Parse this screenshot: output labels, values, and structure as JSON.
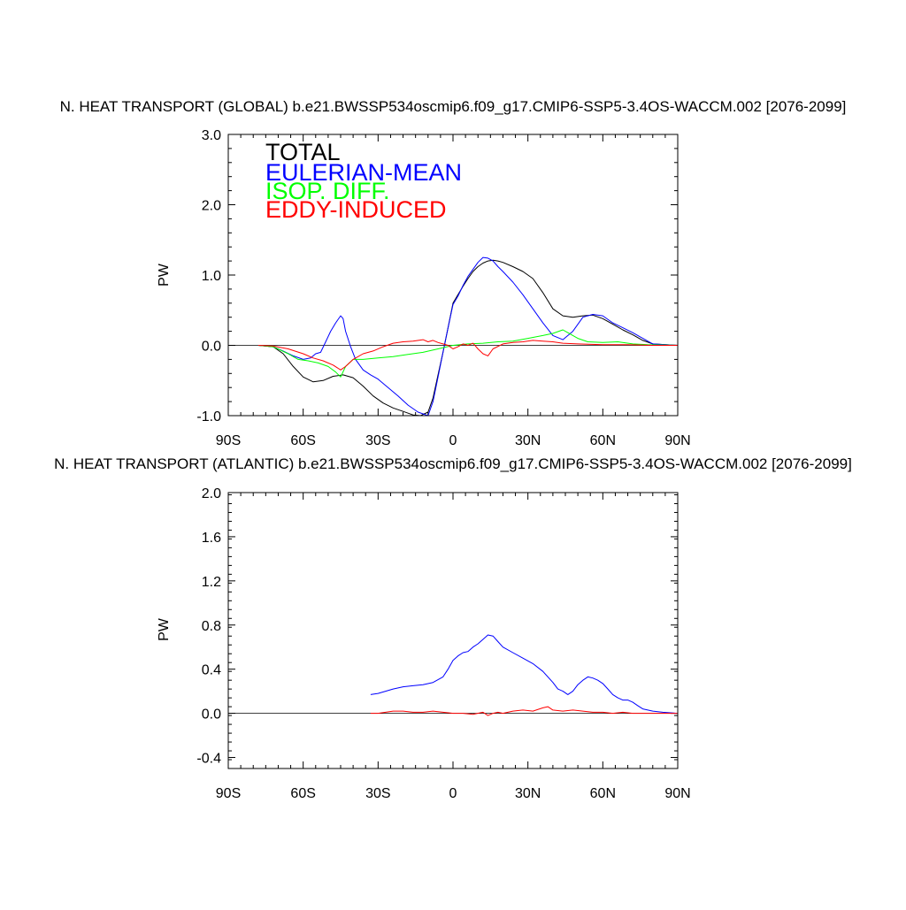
{
  "chart_data": [
    {
      "type": "line",
      "title": "N. HEAT TRANSPORT (GLOBAL) b.e21.BWSSP534oscmip6.f09_g17.CMIP6-SSP5-3.4OS-WACCM.002 [2076-2099]",
      "xlabel": "",
      "ylabel": "PW",
      "xlim": [
        -90,
        90
      ],
      "ylim": [
        -1.0,
        3.0
      ],
      "xticks": [
        -90,
        -60,
        -30,
        0,
        30,
        60,
        90
      ],
      "xtick_labels": [
        "90S",
        "60S",
        "30S",
        "0",
        "30N",
        "60N",
        "90N"
      ],
      "yticks": [
        -1.0,
        0.0,
        1.0,
        2.0,
        3.0
      ],
      "ytick_labels": [
        "-1.0",
        "0.0",
        "1.0",
        "2.0",
        "3.0"
      ],
      "legend": "top-left",
      "series": [
        {
          "name": "TOTAL",
          "color": "#000000",
          "x": [
            -78,
            -72,
            -68,
            -64,
            -60,
            -56,
            -52,
            -48,
            -44,
            -40,
            -36,
            -32,
            -28,
            -24,
            -20,
            -16,
            -13,
            -10,
            -8,
            -6,
            -4,
            -2,
            0,
            2,
            4,
            6,
            8,
            10,
            12,
            14,
            16,
            18,
            20,
            24,
            28,
            32,
            36,
            40,
            44,
            48,
            52,
            56,
            60,
            64,
            68,
            72,
            76,
            80,
            90
          ],
          "values": [
            0.0,
            -0.02,
            -0.12,
            -0.3,
            -0.45,
            -0.52,
            -0.5,
            -0.44,
            -0.42,
            -0.46,
            -0.58,
            -0.72,
            -0.82,
            -0.89,
            -0.94,
            -0.99,
            -1.0,
            -0.95,
            -0.75,
            -0.42,
            -0.1,
            0.25,
            0.6,
            0.72,
            0.84,
            0.95,
            1.05,
            1.12,
            1.17,
            1.2,
            1.21,
            1.2,
            1.18,
            1.12,
            1.05,
            0.95,
            0.75,
            0.52,
            0.42,
            0.4,
            0.42,
            0.43,
            0.38,
            0.3,
            0.22,
            0.15,
            0.07,
            0.02,
            0.0
          ]
        },
        {
          "name": "EULERIAN-MEAN",
          "color": "#0000ff",
          "x": [
            -78,
            -72,
            -68,
            -64,
            -60,
            -57,
            -55,
            -53,
            -51,
            -49,
            -47,
            -45,
            -44,
            -43,
            -41,
            -39,
            -36,
            -33,
            -30,
            -26,
            -22,
            -18,
            -14,
            -10,
            -8,
            -6,
            -4,
            -2,
            0,
            2,
            4,
            6,
            8,
            10,
            12,
            14,
            16,
            18,
            20,
            24,
            28,
            32,
            36,
            40,
            44,
            48,
            52,
            56,
            60,
            64,
            68,
            72,
            76,
            80,
            90
          ],
          "values": [
            0.0,
            -0.02,
            -0.08,
            -0.15,
            -0.2,
            -0.18,
            -0.12,
            -0.1,
            0.05,
            0.2,
            0.32,
            0.42,
            0.38,
            0.2,
            -0.02,
            -0.2,
            -0.35,
            -0.42,
            -0.48,
            -0.6,
            -0.72,
            -0.85,
            -0.95,
            -1.0,
            -0.8,
            -0.45,
            -0.1,
            0.25,
            0.58,
            0.7,
            0.85,
            0.98,
            1.08,
            1.18,
            1.25,
            1.24,
            1.2,
            1.12,
            1.05,
            0.9,
            0.72,
            0.52,
            0.32,
            0.14,
            0.08,
            0.2,
            0.4,
            0.44,
            0.42,
            0.32,
            0.25,
            0.18,
            0.1,
            0.02,
            0.0
          ]
        },
        {
          "name": "ISOP. DIFF.",
          "color": "#00ff00",
          "x": [
            -78,
            -72,
            -66,
            -62,
            -58,
            -54,
            -50,
            -47,
            -45,
            -43,
            -40,
            -36,
            -30,
            -24,
            -18,
            -12,
            -6,
            0,
            6,
            12,
            18,
            24,
            30,
            36,
            40,
            44,
            46,
            50,
            54,
            60,
            66,
            72,
            78,
            90
          ],
          "values": [
            0.0,
            -0.02,
            -0.12,
            -0.2,
            -0.22,
            -0.25,
            -0.3,
            -0.38,
            -0.45,
            -0.3,
            -0.2,
            -0.2,
            -0.18,
            -0.16,
            -0.13,
            -0.1,
            -0.05,
            0.0,
            0.02,
            0.03,
            0.05,
            0.06,
            0.1,
            0.14,
            0.17,
            0.22,
            0.18,
            0.1,
            0.05,
            0.04,
            0.05,
            0.02,
            0.01,
            0.0
          ]
        },
        {
          "name": "EDDY-INDUCED",
          "color": "#ff0000",
          "x": [
            -78,
            -72,
            -66,
            -60,
            -56,
            -52,
            -48,
            -45,
            -43,
            -40,
            -36,
            -32,
            -28,
            -24,
            -20,
            -16,
            -12,
            -10,
            -8,
            -6,
            -4,
            -2,
            0,
            2,
            4,
            6,
            8,
            10,
            12,
            14,
            16,
            20,
            24,
            28,
            32,
            36,
            40,
            44,
            50,
            60,
            70,
            80,
            90
          ],
          "values": [
            0.0,
            -0.01,
            -0.05,
            -0.12,
            -0.18,
            -0.22,
            -0.28,
            -0.35,
            -0.3,
            -0.2,
            -0.12,
            -0.08,
            -0.02,
            0.03,
            0.05,
            0.06,
            0.08,
            0.05,
            0.07,
            0.04,
            0.02,
            0.0,
            -0.05,
            -0.02,
            0.02,
            0.0,
            0.03,
            -0.05,
            -0.12,
            -0.15,
            -0.05,
            0.02,
            0.04,
            0.05,
            0.07,
            0.06,
            0.05,
            0.03,
            0.02,
            0.01,
            0.01,
            0.0,
            0.0
          ]
        }
      ]
    },
    {
      "type": "line",
      "title": "N. HEAT TRANSPORT (ATLANTIC) b.e21.BWSSP534oscmip6.f09_g17.CMIP6-SSP5-3.4OS-WACCM.002 [2076-2099]",
      "xlabel": "",
      "ylabel": "PW",
      "xlim": [
        -90,
        90
      ],
      "ylim": [
        -0.5,
        2.0
      ],
      "xticks": [
        -90,
        -60,
        -30,
        0,
        30,
        60,
        90
      ],
      "xtick_labels": [
        "90S",
        "60S",
        "30S",
        "0",
        "30N",
        "60N",
        "90N"
      ],
      "yticks": [
        -0.4,
        0.0,
        0.4,
        0.8,
        1.2,
        1.6,
        2.0
      ],
      "ytick_labels": [
        "-0.4",
        "0.0",
        "0.4",
        "0.8",
        "1.2",
        "1.6",
        "2.0"
      ],
      "legend": "none",
      "series": [
        {
          "name": "EULERIAN-MEAN",
          "color": "#0000ff",
          "x": [
            -33,
            -30,
            -27,
            -24,
            -20,
            -16,
            -12,
            -8,
            -4,
            -2,
            0,
            2,
            4,
            6,
            8,
            10,
            12,
            14,
            16,
            18,
            20,
            24,
            28,
            32,
            36,
            40,
            42,
            44,
            46,
            48,
            50,
            52,
            54,
            56,
            58,
            60,
            62,
            64,
            66,
            68,
            70,
            72,
            74,
            76,
            80,
            84,
            90
          ],
          "values": [
            0.17,
            0.18,
            0.2,
            0.22,
            0.24,
            0.25,
            0.26,
            0.28,
            0.33,
            0.4,
            0.48,
            0.52,
            0.55,
            0.56,
            0.6,
            0.63,
            0.67,
            0.71,
            0.7,
            0.65,
            0.6,
            0.55,
            0.5,
            0.45,
            0.38,
            0.28,
            0.22,
            0.2,
            0.17,
            0.2,
            0.26,
            0.3,
            0.33,
            0.32,
            0.3,
            0.27,
            0.22,
            0.17,
            0.14,
            0.12,
            0.12,
            0.1,
            0.07,
            0.04,
            0.02,
            0.01,
            0.0
          ]
        },
        {
          "name": "EDDY-INDUCED",
          "color": "#ff0000",
          "x": [
            -33,
            -30,
            -27,
            -24,
            -20,
            -16,
            -12,
            -8,
            -4,
            0,
            4,
            8,
            12,
            14,
            16,
            18,
            20,
            24,
            28,
            32,
            36,
            38,
            40,
            44,
            48,
            52,
            56,
            60,
            64,
            68,
            72,
            76,
            80,
            84,
            90
          ],
          "values": [
            0.0,
            0.0,
            0.01,
            0.02,
            0.02,
            0.01,
            0.01,
            0.02,
            0.01,
            0.0,
            0.0,
            -0.01,
            0.01,
            -0.02,
            0.0,
            0.01,
            0.0,
            0.02,
            0.03,
            0.02,
            0.05,
            0.06,
            0.03,
            0.02,
            0.03,
            0.02,
            0.01,
            0.01,
            0.0,
            0.01,
            0.0,
            0.0,
            0.0,
            0.0,
            0.0
          ]
        }
      ]
    }
  ]
}
